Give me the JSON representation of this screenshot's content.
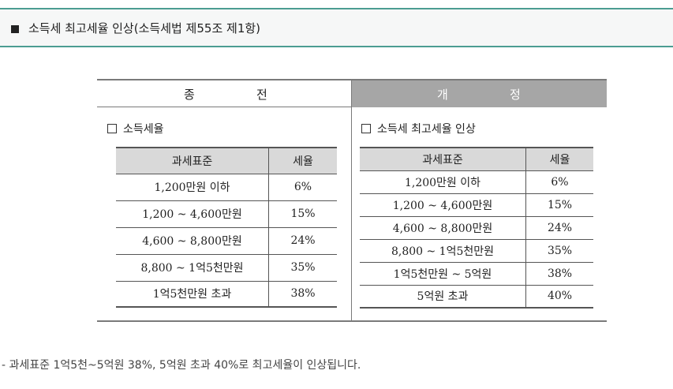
{
  "header": {
    "title": "소득세 최고세율 인상(소득세법 제55조 제1항)"
  },
  "comparison": {
    "before": {
      "heading_chars": [
        "종",
        "전"
      ],
      "section_label": "소득세율",
      "table": {
        "headers": [
          "과세표준",
          "세율"
        ],
        "rows": [
          [
            "1,200만원 이하",
            "6%"
          ],
          [
            "1,200 ~ 4,600만원",
            "15%"
          ],
          [
            "4,600 ~ 8,800만원",
            "24%"
          ],
          [
            "8,800 ~ 1억5천만원",
            "35%"
          ],
          [
            "1억5천만원 초과",
            "38%"
          ]
        ]
      }
    },
    "after": {
      "heading_chars": [
        "개",
        "정"
      ],
      "section_label": "소득세 최고세율 인상",
      "table": {
        "headers": [
          "과세표준",
          "세율"
        ],
        "rows": [
          [
            "1,200만원 이하",
            "6%"
          ],
          [
            "1,200 ~ 4,600만원",
            "15%"
          ],
          [
            "4,600 ~ 8,800만원",
            "24%"
          ],
          [
            "8,800 ~ 1억5천만원",
            "35%"
          ],
          [
            "1억5천만원 ~ 5억원",
            "38%"
          ],
          [
            "5억원 초과",
            "40%"
          ]
        ]
      }
    }
  },
  "footnote": "- 과세표준 1억5천~5억원 38%, 5억원 초과 40%로 최고세율이 인상됩니다."
}
